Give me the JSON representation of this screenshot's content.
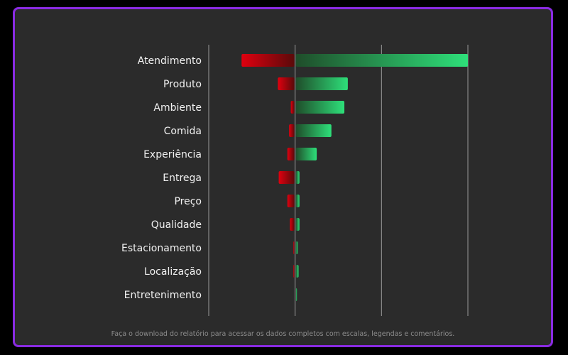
{
  "chart_data": {
    "type": "bar",
    "orientation": "horizontal",
    "stacked": "diverging",
    "categories": [
      "Atendimento",
      "Produto",
      "Ambiente",
      "Comida",
      "Experiência",
      "Entrega",
      "Preço",
      "Qualidade",
      "Estacionamento",
      "Localização",
      "Entretenimento"
    ],
    "series": [
      {
        "values": [
          -62,
          -20,
          -5,
          -7,
          -9,
          -19,
          -9,
          -6,
          -2,
          -2,
          0
        ],
        "color": "#d0000f"
      },
      {
        "values": [
          200,
          61,
          57,
          42,
          25,
          5,
          5,
          5,
          3,
          4,
          1
        ],
        "color": "#2ecc71"
      }
    ],
    "xlim": [
      -100,
      200
    ],
    "grid": true,
    "title": "",
    "xlabel": "",
    "ylabel": ""
  },
  "footnote": "Faça o download do relatório para acessar os dados completos com escalas, legendas e comentários.",
  "colors": {
    "frame_border": "#8a2be2",
    "panel_bg": "#2b2b2b",
    "label_text": "#f0f0f0",
    "grid": "#9a9a9a"
  }
}
